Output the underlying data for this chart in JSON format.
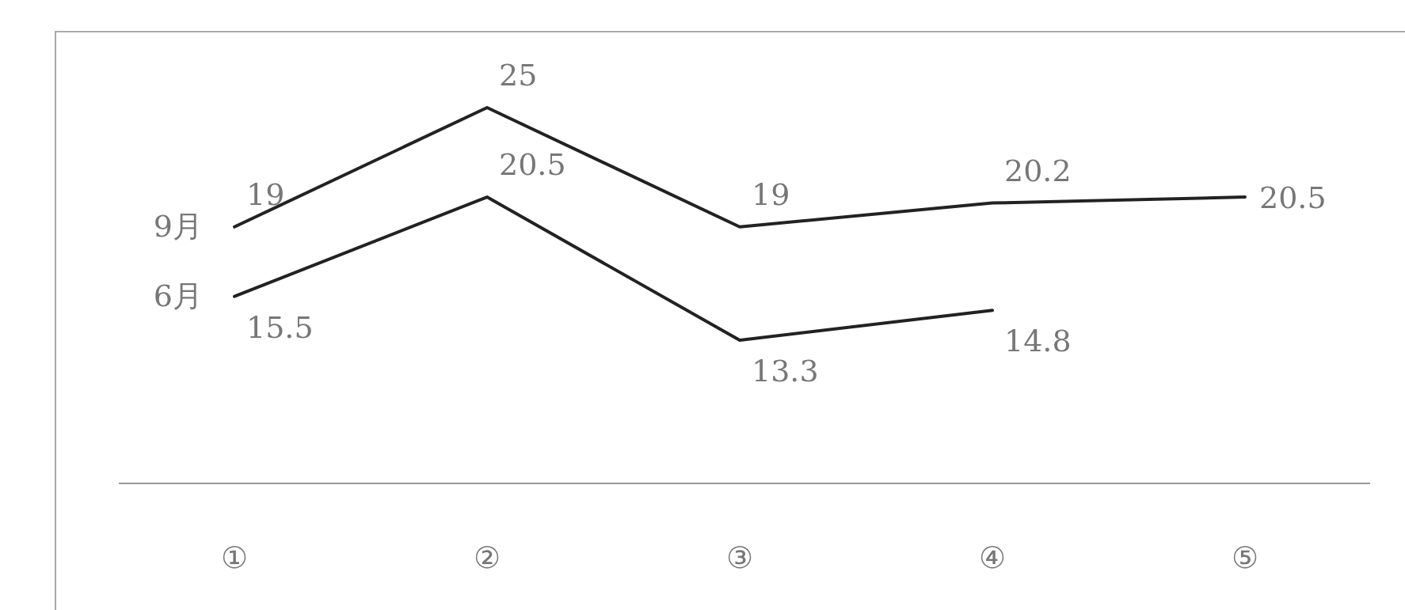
{
  "chart_data": {
    "type": "line",
    "categories": [
      "①",
      "②",
      "③",
      "④",
      "⑤"
    ],
    "series": [
      {
        "name": "9月",
        "color": "#222222",
        "values": [
          19,
          25,
          19,
          20.2,
          20.5
        ]
      },
      {
        "name": "6月",
        "color": "#222222",
        "values": [
          15.5,
          20.5,
          13.3,
          14.8,
          null
        ]
      }
    ],
    "data_labels": true
  }
}
